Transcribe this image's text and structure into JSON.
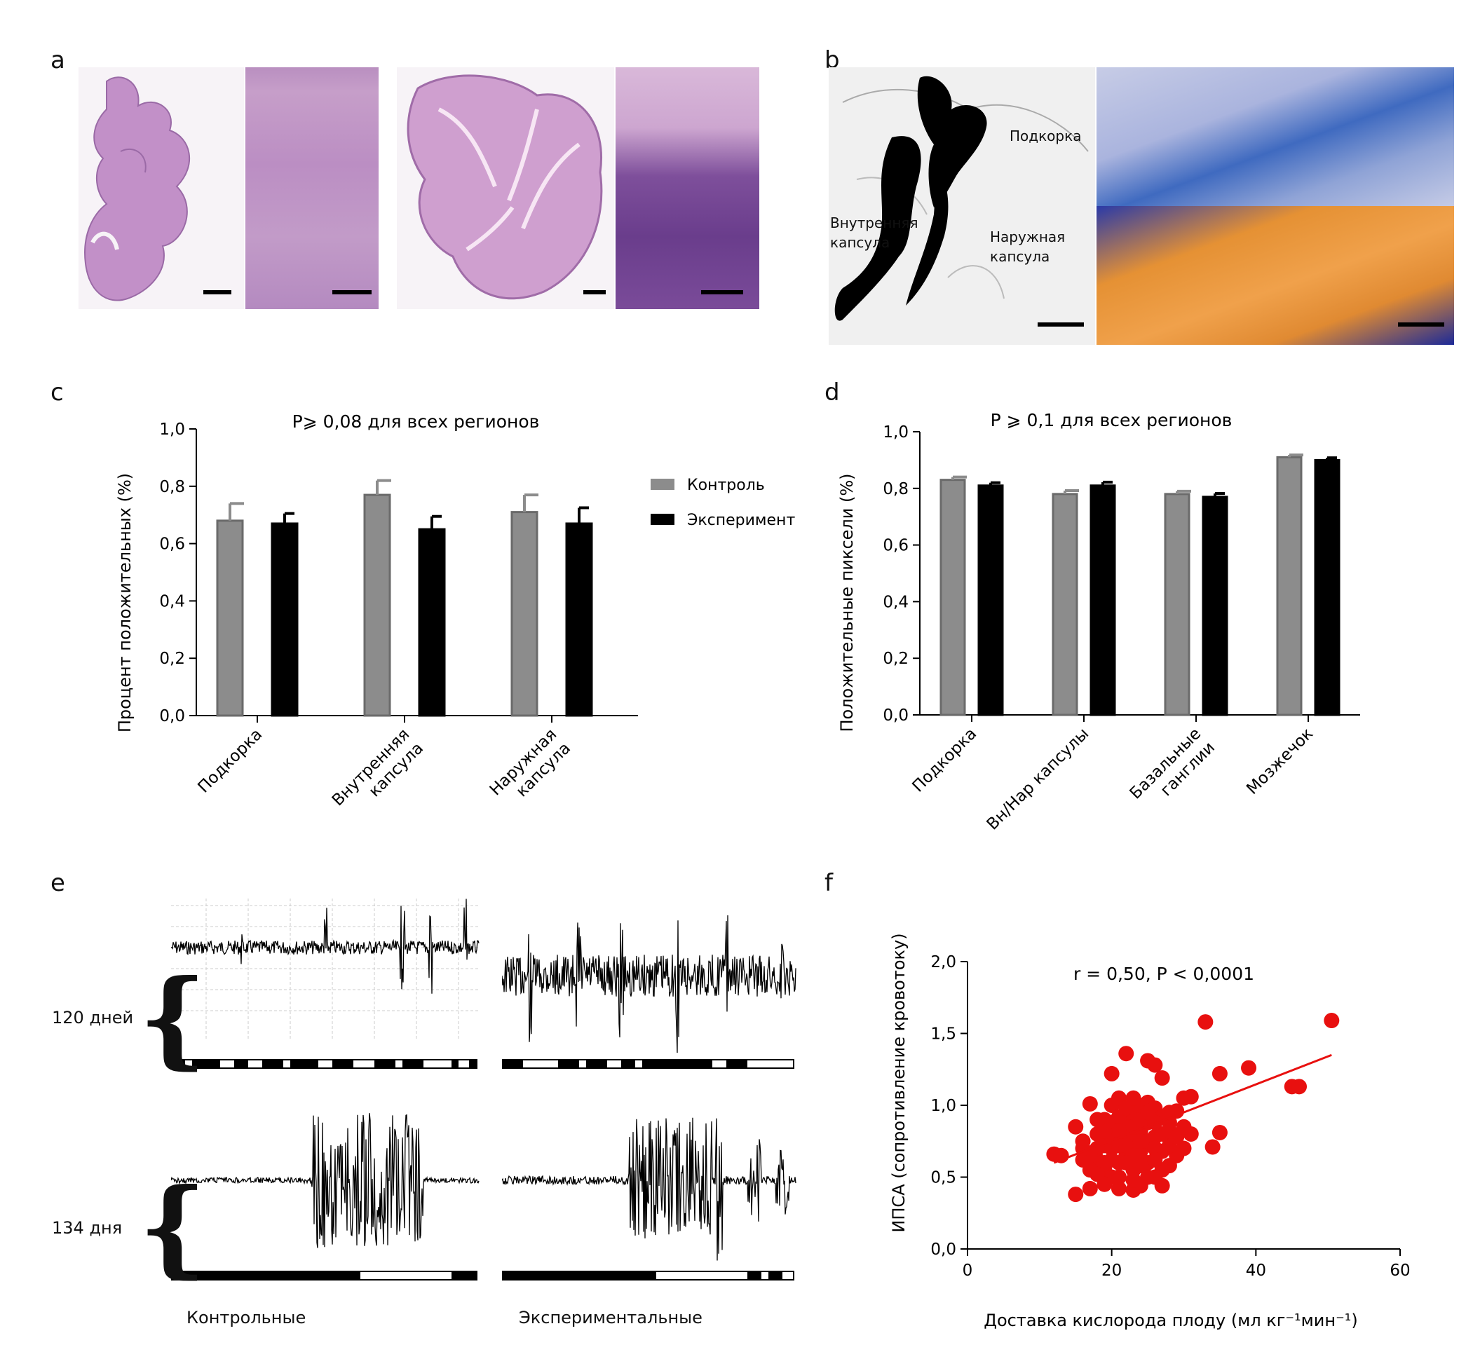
{
  "panels": {
    "a": "a",
    "b": "b",
    "c": "c",
    "d": "d",
    "e": "e",
    "f": "f"
  },
  "panel_b": {
    "label_subcortex": "Подкорка",
    "label_internal": "Внутренняя\nкапсула",
    "label_external": "Наружная\nкапсула"
  },
  "panel_e": {
    "row1": "120 дней",
    "row2": "134 дня",
    "col1": "Контрольные",
    "col2": "Экспериментальные"
  },
  "colors": {
    "control": "#8c8c8c",
    "experiment": "#000000",
    "scatter": "#e8100f",
    "he_stain": "#c892c8",
    "blue_stain": "#5b7fc6",
    "orange_stain": "#e59134"
  },
  "chart_data": [
    {
      "id": "c",
      "type": "bar",
      "title": "P⩾ 0,08 для всех регионов",
      "ylabel": "Процент положительных (%)",
      "xlabel": "",
      "ylim": [
        0,
        1.0
      ],
      "yticks": [
        "0,0",
        "0,2",
        "0,4",
        "0,6",
        "0,8",
        "1,0"
      ],
      "categories": [
        "Подкорка",
        "Внутренняя\nкапсула",
        "Наружная\nкапсула"
      ],
      "series": [
        {
          "name": "Контроль",
          "values": [
            0.68,
            0.77,
            0.71
          ],
          "errors": [
            0.06,
            0.05,
            0.06
          ]
        },
        {
          "name": "Эксперимент",
          "values": [
            0.67,
            0.65,
            0.67
          ],
          "errors": [
            0.035,
            0.045,
            0.055
          ]
        }
      ],
      "legend": "right"
    },
    {
      "id": "d",
      "type": "bar",
      "title": "P ⩾ 0,1 для всех регионов",
      "ylabel": "Положительные пиксели (%)",
      "xlabel": "",
      "ylim": [
        0,
        1.0
      ],
      "yticks": [
        "0,0",
        "0,2",
        "0,4",
        "0,6",
        "0,8",
        "1,0"
      ],
      "categories": [
        "Подкорка",
        "Вн/Нар капсулы",
        "Базальные\nганглии",
        "Мозжечок"
      ],
      "series": [
        {
          "values": [
            0.83,
            0.78,
            0.78,
            0.91
          ],
          "errors": [
            0.01,
            0.012,
            0.01,
            0.008
          ]
        },
        {
          "values": [
            0.81,
            0.81,
            0.77,
            0.9
          ],
          "errors": [
            0.01,
            0.012,
            0.012,
            0.008
          ]
        }
      ]
    },
    {
      "id": "f",
      "type": "scatter",
      "title": "r = 0,50, P < 0,0001",
      "xlabel": "Доставка кислорода плоду (мл кг⁻¹мин⁻¹)",
      "ylabel": "ИПСА (сопротивление кровотоку)",
      "xlim": [
        0,
        60
      ],
      "ylim": [
        0,
        2.0
      ],
      "xticks": [
        "0",
        "20",
        "40",
        "60"
      ],
      "yticks": [
        "0,0",
        "0,5",
        "1,0",
        "1,5",
        "2,0"
      ],
      "fit": {
        "x": [
          12,
          50.5
        ],
        "y": [
          0.6,
          1.35
        ]
      },
      "points": [
        [
          33,
          1.58
        ],
        [
          50.5,
          1.59
        ],
        [
          39,
          1.26
        ],
        [
          35,
          1.22
        ],
        [
          45,
          1.13
        ],
        [
          46,
          1.13
        ],
        [
          31,
          1.06
        ],
        [
          35,
          0.81
        ],
        [
          34,
          0.71
        ],
        [
          12,
          0.66
        ],
        [
          13,
          0.65
        ],
        [
          15,
          0.38
        ],
        [
          17,
          0.42
        ],
        [
          21,
          0.42
        ],
        [
          23,
          0.41
        ],
        [
          24,
          0.44
        ],
        [
          27,
          0.44
        ],
        [
          28,
          0.58
        ],
        [
          20,
          1.22
        ],
        [
          22,
          1.36
        ],
        [
          25,
          1.31
        ],
        [
          26,
          1.28
        ],
        [
          27,
          1.19
        ],
        [
          17,
          1.01
        ],
        [
          15,
          0.85
        ],
        [
          16,
          0.75
        ],
        [
          18,
          0.62
        ],
        [
          19,
          0.55
        ],
        [
          20,
          0.7
        ],
        [
          21,
          0.8
        ],
        [
          22,
          0.9
        ],
        [
          23,
          0.95
        ],
        [
          24,
          1.0
        ],
        [
          25,
          1.02
        ],
        [
          26,
          0.98
        ],
        [
          27,
          0.92
        ],
        [
          28,
          0.88
        ],
        [
          29,
          0.96
        ],
        [
          30,
          1.05
        ],
        [
          31,
          0.8
        ],
        [
          30,
          0.7
        ],
        [
          29,
          0.65
        ],
        [
          28,
          0.72
        ],
        [
          27,
          0.55
        ],
        [
          26,
          0.5
        ],
        [
          25,
          0.6
        ],
        [
          24,
          0.68
        ],
        [
          23,
          0.75
        ],
        [
          22,
          0.85
        ],
        [
          21,
          0.6
        ],
        [
          20,
          0.5
        ],
        [
          19,
          0.72
        ],
        [
          18,
          0.8
        ],
        [
          17,
          0.55
        ],
        [
          16,
          0.62
        ],
        [
          19,
          0.9
        ],
        [
          20,
          1.0
        ],
        [
          21,
          1.05
        ],
        [
          22,
          0.65
        ],
        [
          23,
          0.55
        ],
        [
          24,
          0.82
        ],
        [
          25,
          0.88
        ],
        [
          26,
          0.78
        ],
        [
          27,
          0.68
        ],
        [
          28,
          0.95
        ],
        [
          18,
          0.7
        ],
        [
          19,
          0.6
        ],
        [
          20,
          0.78
        ],
        [
          21,
          0.72
        ],
        [
          22,
          0.78
        ],
        [
          23,
          0.85
        ],
        [
          24,
          0.9
        ],
        [
          25,
          0.75
        ],
        [
          26,
          0.7
        ],
        [
          20,
          0.88
        ],
        [
          21,
          0.92
        ],
        [
          22,
          0.98
        ],
        [
          23,
          1.05
        ],
        [
          24,
          0.58
        ],
        [
          25,
          0.5
        ],
        [
          26,
          0.62
        ],
        [
          21,
          0.5
        ],
        [
          19,
          0.45
        ],
        [
          17,
          0.65
        ],
        [
          16,
          0.7
        ],
        [
          18,
          0.52
        ],
        [
          22,
          0.72
        ],
        [
          23,
          0.65
        ],
        [
          24,
          0.75
        ],
        [
          20,
          0.62
        ],
        [
          21,
          0.82
        ],
        [
          22,
          0.6
        ],
        [
          19,
          0.82
        ],
        [
          18,
          0.9
        ],
        [
          23,
          0.48
        ],
        [
          27,
          0.8
        ],
        [
          28,
          0.82
        ],
        [
          29,
          0.78
        ],
        [
          30,
          0.85
        ],
        [
          26,
          0.88
        ],
        [
          25,
          0.95
        ]
      ]
    }
  ]
}
